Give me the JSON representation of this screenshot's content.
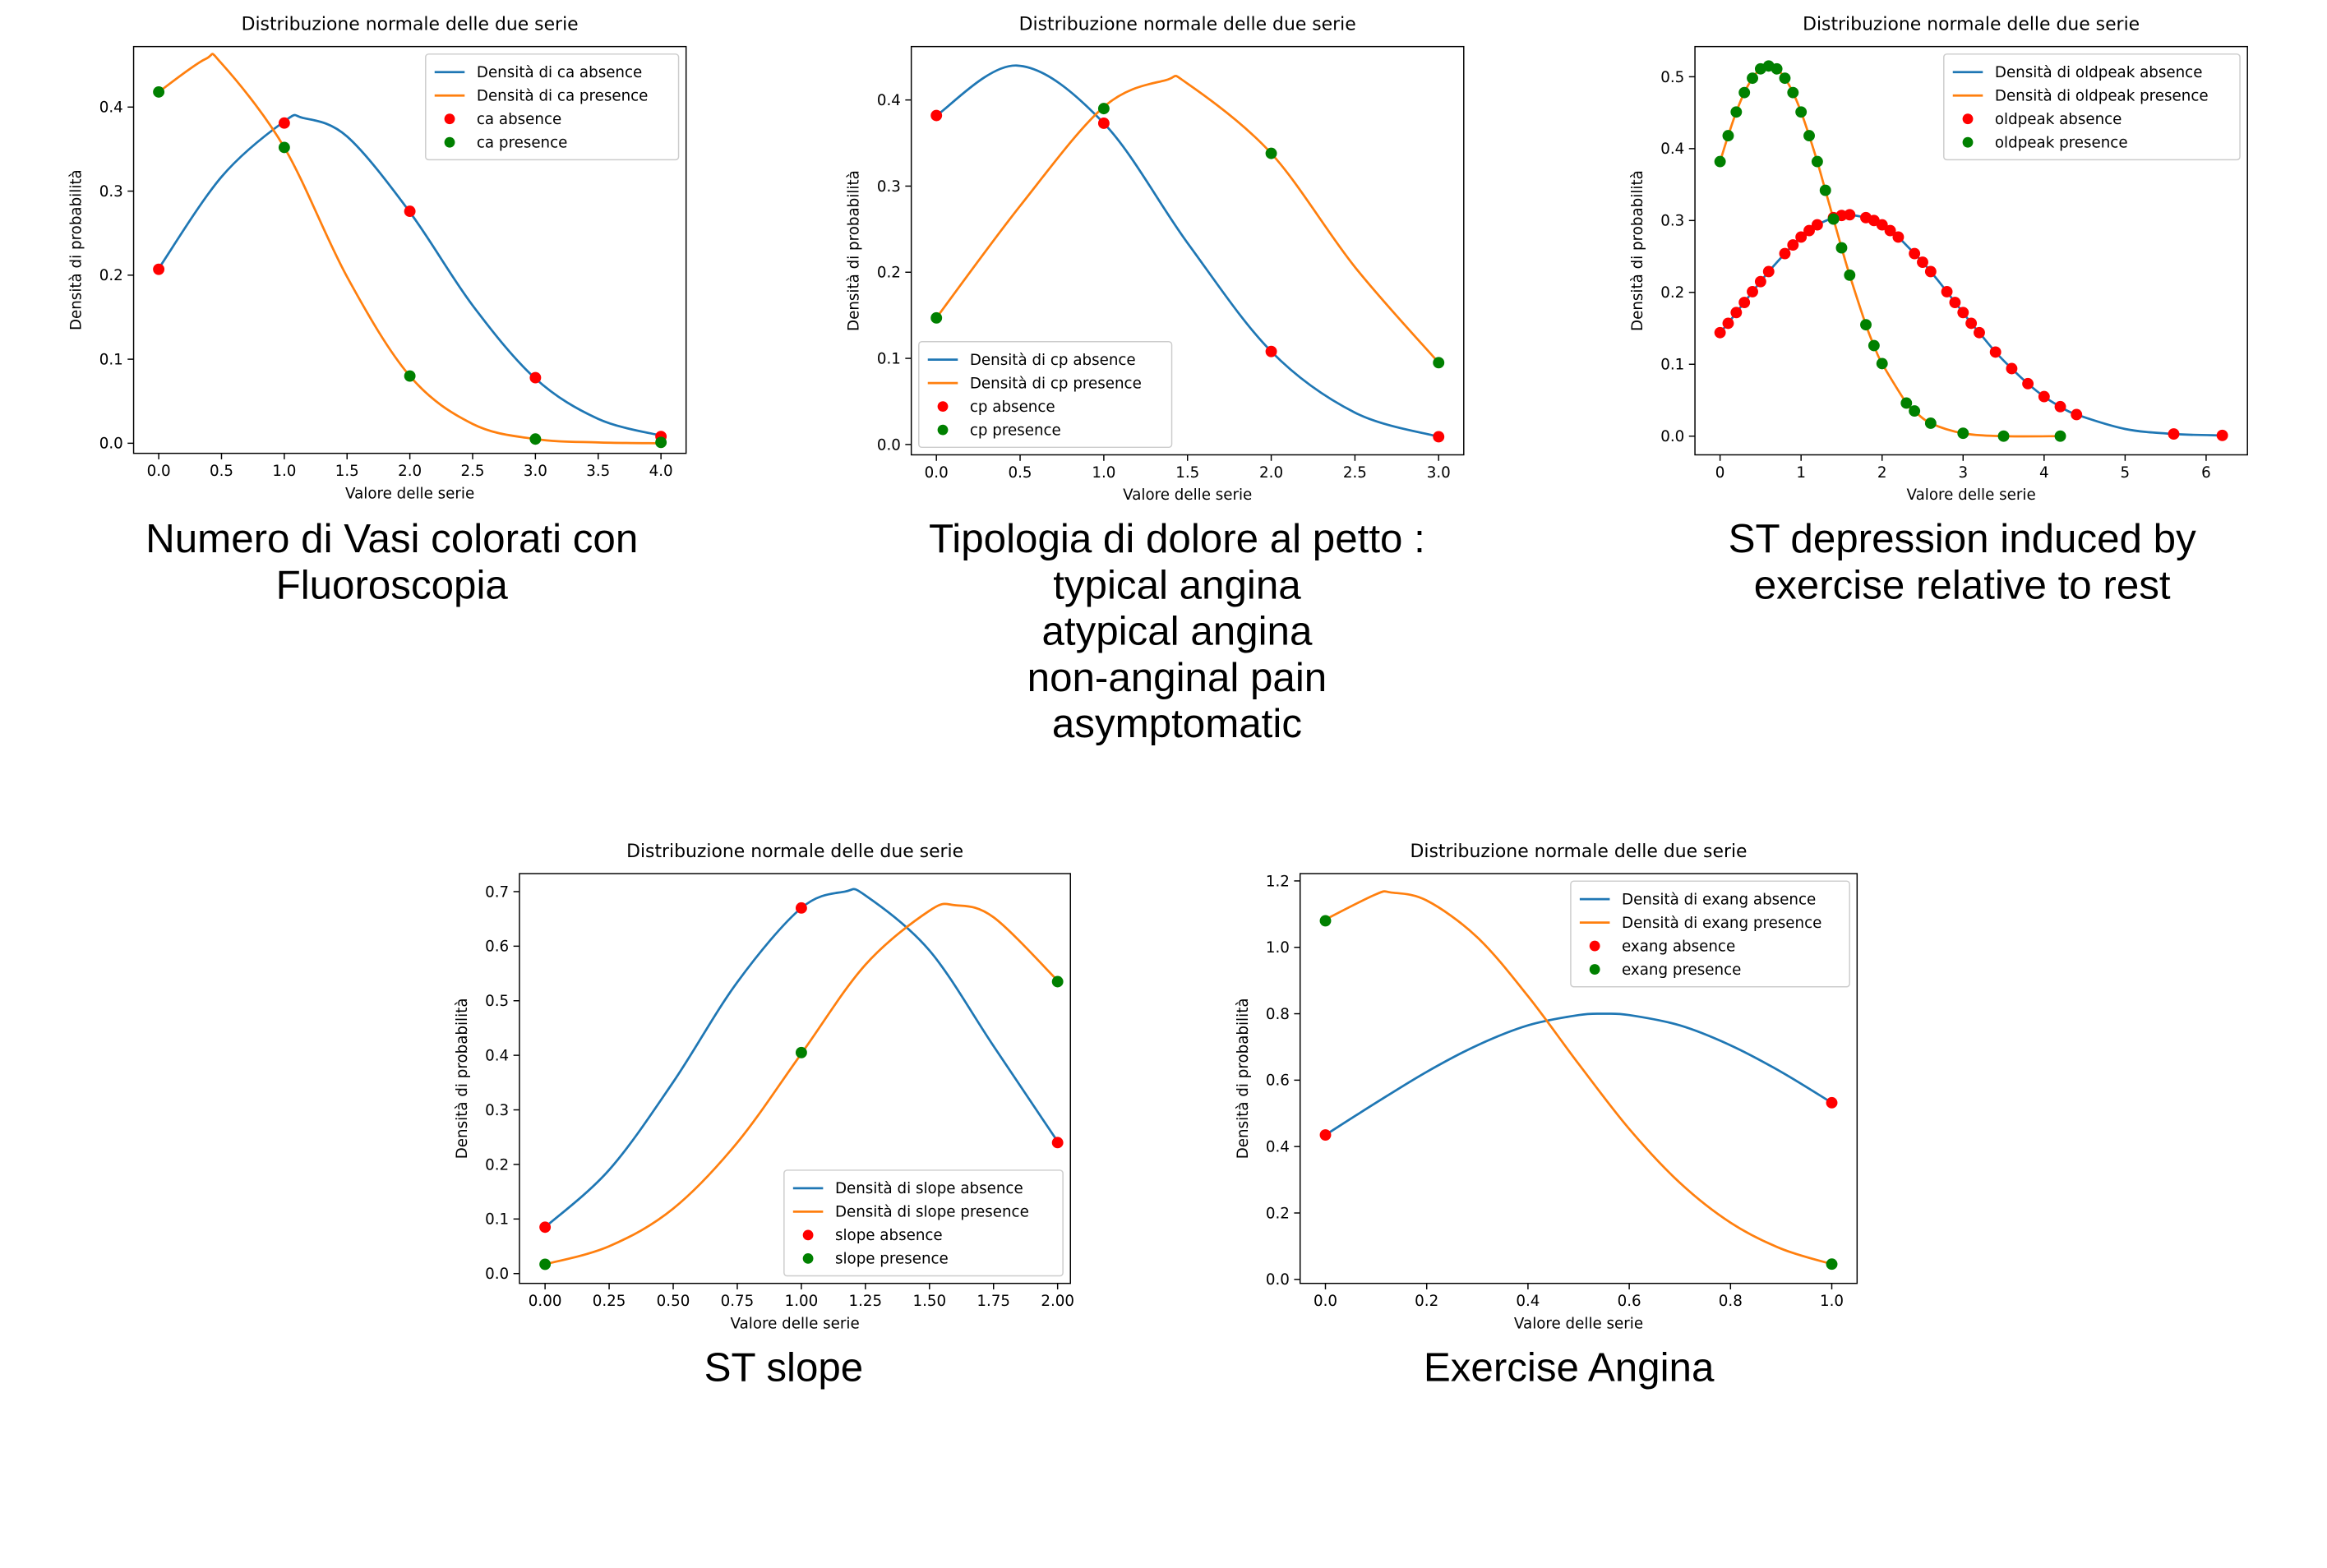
{
  "chart_data": [
    {
      "type": "line",
      "title": "Distribuzione normale delle due serie",
      "xlabel": "Valore delle serie",
      "ylabel": "Densità di probabilità",
      "caption": [
        "Numero di Vasi colorati con",
        "Fluoroscopia"
      ],
      "legend": "upper right",
      "xlim": [
        -0.2,
        4.2
      ],
      "ylim": [
        -0.012,
        0.472
      ],
      "xticks": [
        {
          "value": 0,
          "label": "0.0"
        },
        0.5,
        {
          "value": 1,
          "label": "1.0"
        },
        1.5,
        {
          "value": 2,
          "label": "2.0"
        },
        2.5,
        {
          "value": 3,
          "label": "3.0"
        },
        3.5,
        {
          "value": 4,
          "label": "4.0"
        }
      ],
      "yticks": [
        {
          "value": 0,
          "label": "0.0"
        },
        0.1,
        0.2,
        0.3,
        0.4
      ],
      "series": [
        {
          "name": "Densità di ca absence",
          "color": "#1f77b4",
          "type": "line",
          "x": [
            0,
            0.5,
            1,
            1.15,
            1.5,
            2,
            2.5,
            3,
            3.5,
            4
          ],
          "values": [
            0.208,
            0.317,
            0.383,
            0.387,
            0.365,
            0.275,
            0.164,
            0.077,
            0.029,
            0.009
          ]
        },
        {
          "name": "Densità di ca presence",
          "color": "#ff7f0e",
          "type": "line",
          "x": [
            0,
            0.37,
            0.5,
            1,
            1.5,
            2,
            2.5,
            3,
            3.5,
            4
          ],
          "values": [
            0.418,
            0.457,
            0.452,
            0.352,
            0.198,
            0.08,
            0.023,
            0.005,
            0.001,
            0
          ]
        },
        {
          "name": "ca absence",
          "color": "red",
          "type": "scatter",
          "x": [
            0,
            1,
            2,
            3,
            4
          ],
          "values": [
            0.207,
            0.381,
            0.276,
            0.078,
            0.008
          ]
        },
        {
          "name": "ca presence",
          "color": "green",
          "type": "scatter",
          "x": [
            0,
            1,
            2,
            3,
            4
          ],
          "values": [
            0.418,
            0.352,
            0.08,
            0.005,
            0.001
          ]
        }
      ]
    },
    {
      "type": "line",
      "title": "Distribuzione normale delle due serie",
      "xlabel": "Valore delle serie",
      "ylabel": "Densità di probabilità",
      "caption": [
        "Tipologia di dolore al petto :",
        "typical angina",
        "atypical angina",
        "non-anginal pain",
        "asymptomatic"
      ],
      "legend": "lower left",
      "xlim": [
        -0.15,
        3.15
      ],
      "ylim": [
        -0.012,
        0.462
      ],
      "xticks": [
        {
          "value": 0,
          "label": "0.0"
        },
        0.5,
        {
          "value": 1,
          "label": "1.0"
        },
        1.5,
        {
          "value": 2,
          "label": "2.0"
        },
        2.5,
        {
          "value": 3,
          "label": "3.0"
        }
      ],
      "yticks": [
        {
          "value": 0,
          "label": "0.0"
        },
        0.1,
        0.2,
        0.3,
        0.4
      ],
      "series": [
        {
          "name": "Densità di cp absence",
          "color": "#1f77b4",
          "type": "line",
          "x": [
            0,
            0.48,
            1,
            1.5,
            2,
            2.5,
            3
          ],
          "values": [
            0.382,
            0.44,
            0.373,
            0.234,
            0.108,
            0.037,
            0.009
          ]
        },
        {
          "name": "Densità di cp presence",
          "color": "#ff7f0e",
          "type": "line",
          "x": [
            0,
            0.5,
            1,
            1.37,
            1.5,
            2,
            2.5,
            3
          ],
          "values": [
            0.147,
            0.277,
            0.392,
            0.423,
            0.419,
            0.338,
            0.206,
            0.095
          ]
        },
        {
          "name": "cp absence",
          "color": "red",
          "type": "scatter",
          "x": [
            0,
            1,
            2,
            3
          ],
          "values": [
            0.382,
            0.373,
            0.108,
            0.009
          ]
        },
        {
          "name": "cp presence",
          "color": "green",
          "type": "scatter",
          "x": [
            0,
            1,
            2,
            3
          ],
          "values": [
            0.147,
            0.39,
            0.338,
            0.095
          ]
        }
      ]
    },
    {
      "type": "line",
      "title": "Distribuzione normale delle due serie",
      "xlabel": "Valore delle serie",
      "ylabel": "Densità di probabilità",
      "caption": [
        "ST depression induced by",
        "exercise relative to rest"
      ],
      "legend": "upper right",
      "xlim": [
        -0.31,
        6.51
      ],
      "ylim": [
        -0.026,
        0.542
      ],
      "xticks": [
        0,
        1,
        2,
        3,
        4,
        5,
        6
      ],
      "yticks": [
        {
          "value": 0,
          "label": "0.0"
        },
        0.1,
        0.2,
        0.3,
        0.4,
        0.5
      ],
      "series": [
        {
          "name": "Densità di oldpeak absence",
          "color": "#1f77b4",
          "type": "line",
          "x": [
            0,
            0.1,
            0.2,
            0.3,
            0.4,
            0.5,
            0.6,
            0.8,
            0.9,
            1.0,
            1.1,
            1.2,
            1.4,
            1.5,
            1.6,
            1.8,
            1.9,
            2.0,
            2.1,
            2.2,
            2.4,
            2.5,
            2.6,
            2.8,
            2.9,
            3.0,
            3.1,
            3.2,
            3.4,
            3.6,
            3.8,
            4.0,
            4.2,
            4.4,
            5.0,
            5.6,
            6.2
          ],
          "values": [
            0.144,
            0.157,
            0.172,
            0.186,
            0.201,
            0.215,
            0.229,
            0.254,
            0.266,
            0.277,
            0.286,
            0.294,
            0.304,
            0.307,
            0.308,
            0.304,
            0.3,
            0.294,
            0.286,
            0.277,
            0.254,
            0.242,
            0.229,
            0.201,
            0.186,
            0.172,
            0.157,
            0.144,
            0.117,
            0.094,
            0.073,
            0.055,
            0.041,
            0.03,
            0.01,
            0.003,
            0.001
          ]
        },
        {
          "name": "Densità di oldpeak presence",
          "color": "#ff7f0e",
          "type": "line",
          "x": [
            0,
            0.1,
            0.2,
            0.3,
            0.4,
            0.5,
            0.6,
            0.7,
            0.8,
            0.9,
            1.0,
            1.1,
            1.2,
            1.3,
            1.4,
            1.5,
            1.6,
            1.8,
            1.9,
            2.0,
            2.3,
            2.4,
            2.6,
            3.0,
            3.5,
            4.2
          ],
          "values": [
            0.382,
            0.418,
            0.451,
            0.478,
            0.498,
            0.511,
            0.515,
            0.511,
            0.498,
            0.478,
            0.451,
            0.418,
            0.382,
            0.342,
            0.302,
            0.262,
            0.224,
            0.155,
            0.126,
            0.101,
            0.046,
            0.035,
            0.018,
            0.004,
            0,
            0
          ]
        },
        {
          "name": "oldpeak absence",
          "color": "red",
          "type": "scatter",
          "x": [
            0,
            0.1,
            0.2,
            0.3,
            0.4,
            0.5,
            0.6,
            0.8,
            0.9,
            1.0,
            1.1,
            1.2,
            1.4,
            1.5,
            1.6,
            1.8,
            1.9,
            2.0,
            2.1,
            2.2,
            2.4,
            2.5,
            2.6,
            2.8,
            2.9,
            3.0,
            3.1,
            3.2,
            3.4,
            3.6,
            3.8,
            4.0,
            4.2,
            4.4,
            5.6,
            6.2
          ],
          "values": [
            0.144,
            0.157,
            0.172,
            0.186,
            0.201,
            0.215,
            0.229,
            0.254,
            0.266,
            0.277,
            0.286,
            0.294,
            0.304,
            0.307,
            0.308,
            0.304,
            0.3,
            0.294,
            0.286,
            0.277,
            0.254,
            0.242,
            0.229,
            0.201,
            0.186,
            0.172,
            0.157,
            0.144,
            0.117,
            0.094,
            0.073,
            0.055,
            0.041,
            0.03,
            0.003,
            0.001
          ]
        },
        {
          "name": "oldpeak presence",
          "color": "green",
          "type": "scatter",
          "x": [
            0,
            0.1,
            0.2,
            0.3,
            0.4,
            0.5,
            0.6,
            0.7,
            0.8,
            0.9,
            1.0,
            1.1,
            1.2,
            1.3,
            1.4,
            1.5,
            1.6,
            1.8,
            1.9,
            2.0,
            2.3,
            2.4,
            2.6,
            3.0,
            3.5,
            4.2
          ],
          "values": [
            0.382,
            0.418,
            0.451,
            0.478,
            0.498,
            0.511,
            0.515,
            0.511,
            0.498,
            0.478,
            0.451,
            0.418,
            0.382,
            0.342,
            0.302,
            0.262,
            0.224,
            0.155,
            0.126,
            0.101,
            0.046,
            0.035,
            0.018,
            0.004,
            0,
            0
          ]
        }
      ]
    },
    {
      "type": "line",
      "title": "Distribuzione normale delle due serie",
      "xlabel": "Valore delle serie",
      "ylabel": "Densità di probabilità",
      "caption": [
        "ST slope"
      ],
      "legend": "lower right",
      "xlim": [
        -0.1,
        2.05
      ],
      "ylim": [
        -0.018,
        0.733
      ],
      "xticks": [
        {
          "value": 0,
          "label": "0.00"
        },
        {
          "value": 0.25,
          "label": "0.25"
        },
        {
          "value": 0.5,
          "label": "0.50"
        },
        {
          "value": 0.75,
          "label": "0.75"
        },
        {
          "value": 1,
          "label": "1.00"
        },
        {
          "value": 1.25,
          "label": "1.25"
        },
        {
          "value": 1.5,
          "label": "1.50"
        },
        {
          "value": 1.75,
          "label": "1.75"
        },
        {
          "value": 2,
          "label": "2.00"
        }
      ],
      "yticks": [
        {
          "value": 0,
          "label": "0.0"
        },
        0.1,
        0.2,
        0.3,
        0.4,
        0.5,
        0.6,
        0.7
      ],
      "series": [
        {
          "name": "Densità di slope absence",
          "color": "#1f77b4",
          "type": "line",
          "x": [
            0,
            0.25,
            0.5,
            0.75,
            1,
            1.17,
            1.25,
            1.5,
            1.75,
            2
          ],
          "values": [
            0.085,
            0.19,
            0.351,
            0.534,
            0.67,
            0.7,
            0.693,
            0.592,
            0.417,
            0.242
          ]
        },
        {
          "name": "Densità di slope presence",
          "color": "#ff7f0e",
          "type": "line",
          "x": [
            0,
            0.25,
            0.5,
            0.75,
            1,
            1.25,
            1.5,
            1.6,
            1.75,
            2
          ],
          "values": [
            0.017,
            0.05,
            0.119,
            0.24,
            0.403,
            0.566,
            0.665,
            0.675,
            0.653,
            0.537
          ]
        },
        {
          "name": "slope absence",
          "color": "red",
          "type": "scatter",
          "x": [
            0,
            1,
            2
          ],
          "values": [
            0.085,
            0.67,
            0.24
          ]
        },
        {
          "name": "slope presence",
          "color": "green",
          "type": "scatter",
          "x": [
            0,
            1,
            2
          ],
          "values": [
            0.017,
            0.405,
            0.535
          ]
        }
      ]
    },
    {
      "type": "line",
      "title": "Distribuzione normale delle due serie",
      "xlabel": "Valore delle serie",
      "ylabel": "Densità di probabilità",
      "caption": [
        "Exercise Angina"
      ],
      "legend": "upper right",
      "xlim": [
        -0.05,
        1.05
      ],
      "ylim": [
        -0.012,
        1.222
      ],
      "xticks": [
        {
          "value": 0,
          "label": "0.0"
        },
        0.2,
        0.4,
        0.6,
        0.8,
        {
          "value": 1,
          "label": "1.0"
        }
      ],
      "yticks": [
        {
          "value": 0,
          "label": "0.0"
        },
        0.2,
        0.4,
        0.6,
        0.8,
        {
          "value": 1,
          "label": "1.0"
        },
        1.2
      ],
      "series": [
        {
          "name": "Densità di exang absence",
          "color": "#1f77b4",
          "type": "line",
          "x": [
            0,
            0.1,
            0.2,
            0.3,
            0.4,
            0.5,
            0.55,
            0.6,
            0.7,
            0.8,
            0.9,
            1.0
          ],
          "values": [
            0.435,
            0.532,
            0.625,
            0.705,
            0.765,
            0.796,
            0.8,
            0.796,
            0.765,
            0.705,
            0.625,
            0.532
          ]
        },
        {
          "name": "Densità di exang presence",
          "color": "#ff7f0e",
          "type": "line",
          "x": [
            0,
            0.1,
            0.13,
            0.2,
            0.3,
            0.4,
            0.5,
            0.6,
            0.7,
            0.8,
            0.9,
            1.0
          ],
          "values": [
            1.084,
            1.16,
            1.165,
            1.141,
            1.03,
            0.853,
            0.649,
            0.453,
            0.291,
            0.171,
            0.0925,
            0.046
          ]
        },
        {
          "name": "exang absence",
          "color": "red",
          "type": "scatter",
          "x": [
            0,
            1
          ],
          "values": [
            0.435,
            0.532
          ]
        },
        {
          "name": "exang presence",
          "color": "green",
          "type": "scatter",
          "x": [
            0,
            1
          ],
          "values": [
            1.08,
            0.046
          ]
        }
      ]
    }
  ]
}
